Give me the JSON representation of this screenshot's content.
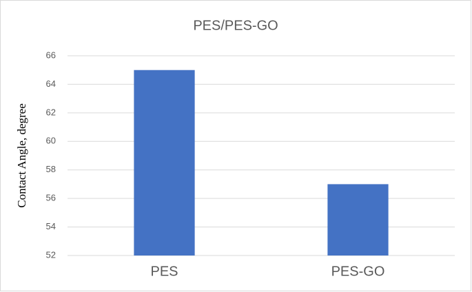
{
  "chart_data": {
    "type": "bar",
    "title": "PES/PES-GO",
    "y_label": "Contact Angle, degree",
    "categories": [
      "PES",
      "PES-GO"
    ],
    "values": [
      65,
      57
    ],
    "color": "#4472c4",
    "ylim": [
      52,
      66
    ],
    "yticks": [
      52,
      54,
      56,
      58,
      60,
      62,
      64,
      66
    ],
    "grid": true
  }
}
